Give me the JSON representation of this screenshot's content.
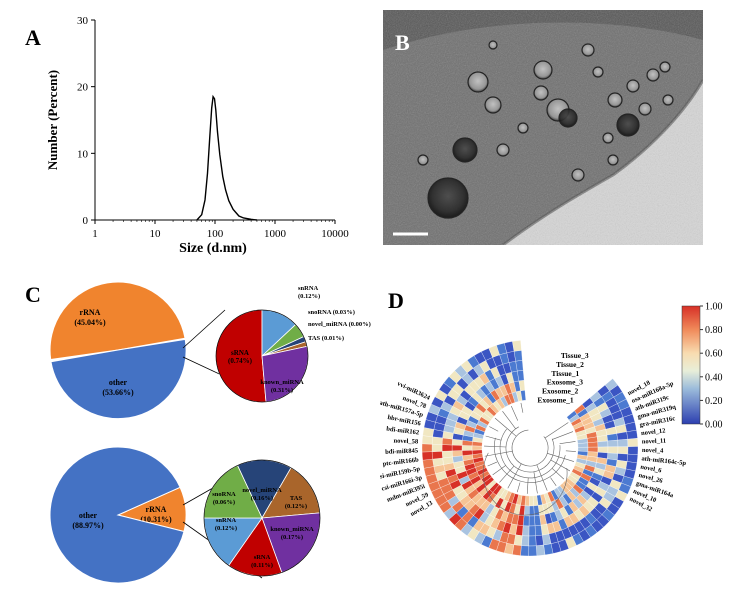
{
  "panels": {
    "a": "A",
    "b": "B",
    "c": "C",
    "d": "D"
  },
  "panel_a": {
    "ylabel": "Number (Percent)",
    "xlabel": "Size (d.nm)"
  },
  "panel_c": {
    "top_pie": {
      "slices": [
        {
          "label": "rRNA",
          "value": "(45.04%)",
          "color": "#f0842e"
        },
        {
          "label": "other",
          "value": "(53.66%)",
          "color": "#4472c4"
        }
      ],
      "sub_slices": [
        {
          "label": "sRNA",
          "value": "(0.74%)",
          "color": "#c00000"
        },
        {
          "label": "snRNA",
          "value": "(0.12%)",
          "color": "#5b9bd5"
        },
        {
          "label": "snoRNA",
          "value": "(0.03%)",
          "color": "#70ad47"
        },
        {
          "label": "novel_miRNA",
          "value": "(0.00%)",
          "color": "#264478"
        },
        {
          "label": "TAS",
          "value": "(0.01%)",
          "color": "#a9652b"
        },
        {
          "label": "known_miRNA",
          "value": "(0.31%)",
          "color": "#7030a0"
        }
      ]
    },
    "bottom_pie": {
      "slices": [
        {
          "label": "rRNA",
          "value": "(10.31%)",
          "color": "#f0842e"
        },
        {
          "label": "other",
          "value": "(88.97%)",
          "color": "#4472c4"
        }
      ],
      "sub_slices": [
        {
          "label": "novel_miRNA",
          "value": "(0.16%)",
          "color": "#264478"
        },
        {
          "label": "TAS",
          "value": "(0.12%)",
          "color": "#a9652b"
        },
        {
          "label": "known_miRNA",
          "value": "(0.17%)",
          "color": "#7030a0"
        },
        {
          "label": "sRNA",
          "value": "(0.11%)",
          "color": "#c00000"
        },
        {
          "label": "snRNA",
          "value": "(0.12%)",
          "color": "#5b9bd5"
        },
        {
          "label": "snoRNA",
          "value": "(0.06%)",
          "color": "#70ad47"
        }
      ]
    }
  },
  "panel_d": {
    "sample_labels": [
      "Tissue_3",
      "Tissue_2",
      "Tissue_1",
      "Exosome_3",
      "Exosome_2",
      "Exosome_1"
    ],
    "colorbar": {
      "ticks": [
        "1.00",
        "0.80",
        "0.60",
        "0.40",
        "0.20",
        "0.00"
      ]
    },
    "left_labels": [
      "novel_13",
      "novel_59",
      "mdm-miR395i",
      "csi-miR166i-3p",
      "csi-miR159b-5p",
      "ptc-miR166b",
      "bdi-miR845",
      "novel_58",
      "bdi-miR162",
      "hbr-miR156",
      "ath-miR157a-5p",
      "novel_78",
      "vvi-miR3624"
    ],
    "right_labels": [
      "novel_18",
      "osa-miR168a-5p",
      "ath-miR319c",
      "gma-miR319q",
      "gra-miR316c",
      "novel_12",
      "novel_11",
      "novel_4",
      "ath-miR164c-5p",
      "novel_6",
      "novel_26",
      "gma-miR164a",
      "novel_10",
      "novel_32"
    ]
  },
  "chart_data": [
    {
      "type": "line",
      "title": "",
      "xlabel": "Size (d.nm)",
      "ylabel": "Number (Percent)",
      "xscale": "log",
      "xlim": [
        1,
        10000
      ],
      "ylim": [
        0,
        30
      ],
      "xticks": [
        "1",
        "10",
        "100",
        "1000",
        "10000"
      ],
      "yticks": [
        "0",
        "10",
        "20",
        "30"
      ],
      "series": [
        {
          "x": [
            50,
            60,
            68,
            75,
            82,
            88,
            93,
            98,
            103,
            110,
            120,
            135,
            150,
            170,
            200,
            250,
            300,
            400,
            500
          ],
          "y": [
            0,
            0.8,
            3,
            7,
            12.5,
            16.8,
            18.5,
            18.2,
            16.5,
            13.2,
            9.8,
            6.5,
            4.5,
            2.9,
            1.6,
            0.6,
            0.3,
            0.1,
            0
          ]
        }
      ]
    },
    {
      "type": "pie",
      "series": [
        {
          "labels": [
            "rRNA",
            "other"
          ],
          "values": [
            45.04,
            53.66
          ]
        }
      ]
    },
    {
      "type": "pie",
      "series": [
        {
          "labels": [
            "sRNA",
            "snRNA",
            "snoRNA",
            "novel_miRNA",
            "TAS",
            "known_miRNA"
          ],
          "values": [
            0.74,
            0.12,
            0.03,
            0.0,
            0.01,
            0.31
          ]
        }
      ]
    },
    {
      "type": "pie",
      "series": [
        {
          "labels": [
            "rRNA",
            "other"
          ],
          "values": [
            10.31,
            88.97
          ]
        }
      ]
    },
    {
      "type": "pie",
      "series": [
        {
          "labels": [
            "novel_miRNA",
            "TAS",
            "known_miRNA",
            "sRNA",
            "snRNA",
            "snoRNA"
          ],
          "values": [
            0.16,
            0.12,
            0.17,
            0.11,
            0.12,
            0.06
          ]
        }
      ]
    },
    {
      "type": "heatmap",
      "xlabel": "",
      "ylabel": "",
      "colorbar_range": [
        0.0,
        1.0
      ],
      "rows": [
        "Tissue_3",
        "Tissue_2",
        "Tissue_1",
        "Exosome_3",
        "Exosome_2",
        "Exosome_1"
      ]
    }
  ]
}
